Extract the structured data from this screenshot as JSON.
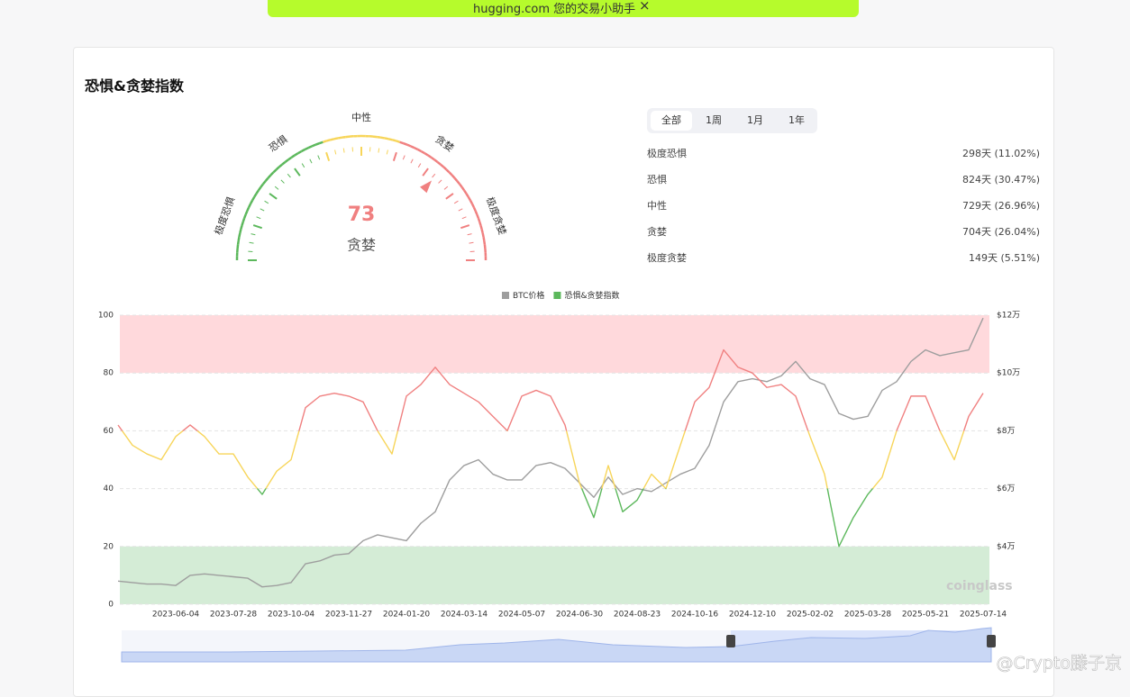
{
  "banner": {
    "text": "hugging.com 您的交易小助手",
    "close": "×"
  },
  "title": "恐惧&贪婪指数",
  "gauge": {
    "value": 73,
    "label": "贪婪",
    "zones": [
      "极度恐惧",
      "恐惧",
      "中性",
      "贪婪",
      "极度贪婪"
    ]
  },
  "tabs": [
    "全部",
    "1周",
    "1月",
    "1年"
  ],
  "stats": [
    {
      "label": "极度恐惧",
      "value": "298天 (11.02%)"
    },
    {
      "label": "恐惧",
      "value": "824天 (30.47%)"
    },
    {
      "label": "中性",
      "value": "729天 (26.96%)"
    },
    {
      "label": "贪婪",
      "value": "704天 (26.04%)"
    },
    {
      "label": "极度贪婪",
      "value": "149天 (5.51%)"
    }
  ],
  "chart_data": {
    "type": "line",
    "categories": [
      null,
      null,
      null,
      null,
      "2023-06-04",
      null,
      null,
      null,
      "2023-07-28",
      null,
      null,
      null,
      "2023-10-04",
      null,
      null,
      null,
      "2023-11-27",
      null,
      null,
      null,
      "2024-01-20",
      null,
      null,
      null,
      "2024-03-14",
      null,
      null,
      null,
      "2024-05-07",
      null,
      null,
      null,
      "2024-06-30",
      null,
      null,
      null,
      "2024-08-23",
      null,
      null,
      null,
      "2024-10-16",
      null,
      null,
      null,
      "2024-12-10",
      null,
      null,
      null,
      "2025-02-02",
      null,
      null,
      null,
      "2025-03-28",
      null,
      null,
      null,
      "2025-05-21",
      null,
      null,
      null,
      "2025-07-14"
    ],
    "series": [
      {
        "name": "BTC价格",
        "color": "#9e9e9e",
        "axis": "y2",
        "values": [
          28000,
          27500,
          27000,
          27000,
          26500,
          30000,
          30500,
          30000,
          29500,
          29000,
          26000,
          26500,
          27500,
          34000,
          35000,
          37000,
          37500,
          42000,
          44000,
          43000,
          42000,
          48000,
          52000,
          63000,
          68000,
          70000,
          65000,
          63000,
          63000,
          68000,
          69000,
          67000,
          62000,
          57000,
          64000,
          58000,
          60000,
          59000,
          62000,
          65000,
          67000,
          75000,
          90000,
          97000,
          98000,
          97000,
          99000,
          104000,
          98000,
          96000,
          86000,
          84000,
          85000,
          94000,
          97000,
          104000,
          108000,
          106000,
          107000,
          108000,
          119000
        ]
      },
      {
        "name": "恐惧&贪婪指数",
        "color": "#5cb85c",
        "values": [
          62,
          55,
          52,
          50,
          58,
          62,
          58,
          52,
          52,
          44,
          38,
          46,
          50,
          68,
          72,
          73,
          72,
          70,
          60,
          52,
          72,
          76,
          82,
          76,
          73,
          70,
          65,
          60,
          72,
          74,
          72,
          62,
          42,
          30,
          48,
          32,
          36,
          45,
          40,
          55,
          70,
          75,
          88,
          82,
          80,
          75,
          76,
          72,
          58,
          45,
          20,
          30,
          38,
          44,
          60,
          72,
          72,
          60,
          50,
          65,
          73
        ]
      }
    ],
    "ylim": [
      0,
      100
    ],
    "yticks": [
      0,
      20,
      40,
      60,
      80,
      100
    ],
    "y2lim": [
      20000,
      120000
    ],
    "y2ticks": [
      {
        "value": 40000,
        "label": "$4万"
      },
      {
        "value": 60000,
        "label": "$6万"
      },
      {
        "value": 80000,
        "label": "$8万"
      },
      {
        "value": 100000,
        "label": "$10万"
      },
      {
        "value": 120000,
        "label": "$12万"
      }
    ],
    "grid": true,
    "legend": "top"
  },
  "watermarks": [
    "coinglass",
    "@Crypto滕子京"
  ]
}
